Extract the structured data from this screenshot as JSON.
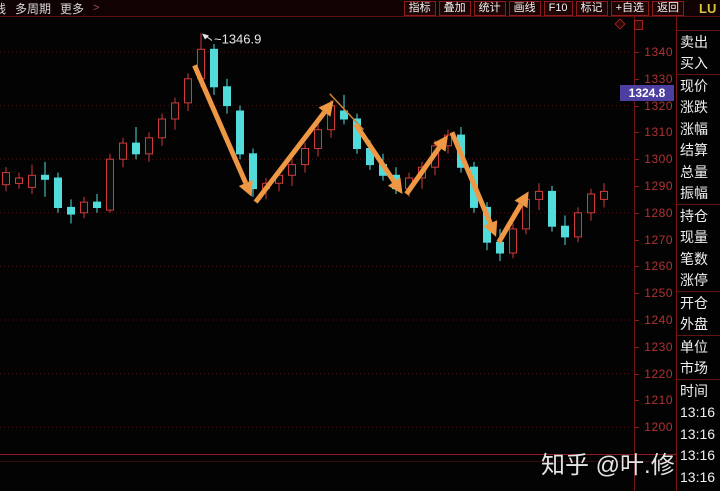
{
  "toolbar": {
    "left_items": [
      {
        "label": "线",
        "name": "clipped-menu-item"
      },
      {
        "label": "多周期",
        "name": "multi-period-menu"
      },
      {
        "label": "更多",
        "name": "more-menu"
      }
    ],
    "chevron": ">",
    "right_items": [
      {
        "label": "指标",
        "name": "indicator-button"
      },
      {
        "label": "叠加",
        "name": "overlay-button"
      },
      {
        "label": "统计",
        "name": "statistics-button"
      },
      {
        "label": "画线",
        "name": "draw-line-button"
      },
      {
        "label": "F10",
        "name": "f10-button"
      },
      {
        "label": "标记",
        "name": "mark-button"
      },
      {
        "label": "+自选",
        "name": "add-watchlist-button"
      },
      {
        "label": "返回",
        "name": "back-button"
      }
    ]
  },
  "symbol": "LU",
  "chart": {
    "watermark": "知乎 @叶.修",
    "annotation_label": "1346.9"
  },
  "axis": {
    "labels": [
      "1340",
      "1330",
      "1320",
      "1310",
      "1300",
      "1290",
      "1280",
      "1270",
      "1260",
      "1250",
      "1240",
      "1230",
      "1220",
      "1210",
      "1200"
    ],
    "current_price": "1324.8",
    "current_price_bg": "#4c3fa0",
    "text_color": "#b23232"
  },
  "quote_panel": {
    "groups": [
      {
        "rows": [
          "卖出",
          "买入"
        ]
      },
      {
        "rows": [
          "现价",
          "涨跌",
          "涨幅",
          "结算",
          "总量",
          "振幅"
        ]
      },
      {
        "rows": [
          "持仓",
          "现量",
          "笔数",
          "涨停"
        ]
      },
      {
        "rows": [
          "开仓",
          "外盘"
        ]
      },
      {
        "rows": [
          "单位",
          "市场"
        ]
      },
      {
        "rows": [
          "时间",
          "13:16",
          "13:16",
          "13:16",
          "13:16",
          "13:16"
        ]
      }
    ]
  },
  "chart_data": {
    "type": "candlestick",
    "ylabel": "price",
    "y_axis_ticks": [
      1340,
      1330,
      1320,
      1310,
      1300,
      1290,
      1280,
      1270,
      1260,
      1250,
      1240,
      1230,
      1220,
      1210,
      1200
    ],
    "grid_prices": [
      1340,
      1320,
      1300,
      1280,
      1260,
      1240,
      1220,
      1200
    ],
    "high_annotation": "1346.9",
    "colors": {
      "up": "#cf3a3a",
      "down": "#52dbdb",
      "arrow": "#ee9744",
      "arrow_thin": "#c97f33",
      "grid": "#521313",
      "annotation": "#e8e8e8"
    },
    "candles": [
      [
        1290.5,
        1297,
        1288,
        1295
      ],
      [
        1291,
        1295,
        1289,
        1293
      ],
      [
        1289.5,
        1298,
        1287,
        1294
      ],
      [
        1294,
        1299,
        1286,
        1292.5
      ],
      [
        1293,
        1295,
        1280,
        1282
      ],
      [
        1282,
        1285,
        1276,
        1279.5
      ],
      [
        1280,
        1286,
        1278,
        1284
      ],
      [
        1284,
        1287,
        1280,
        1282
      ],
      [
        1281,
        1302,
        1280,
        1300
      ],
      [
        1300,
        1308,
        1297,
        1306
      ],
      [
        1306,
        1312,
        1300,
        1302
      ],
      [
        1302,
        1310,
        1299,
        1308
      ],
      [
        1308,
        1317,
        1305,
        1315
      ],
      [
        1315,
        1323,
        1311,
        1321
      ],
      [
        1321,
        1332,
        1318,
        1330
      ],
      [
        1330,
        1346.9,
        1327,
        1341
      ],
      [
        1341,
        1343,
        1324,
        1327
      ],
      [
        1327,
        1330,
        1317,
        1320
      ],
      [
        1318,
        1320,
        1300,
        1302
      ],
      [
        1302,
        1304,
        1286,
        1289
      ],
      [
        1289,
        1293,
        1285,
        1291
      ],
      [
        1291,
        1296,
        1288,
        1294
      ],
      [
        1294,
        1300,
        1290,
        1298
      ],
      [
        1298,
        1306,
        1295,
        1304
      ],
      [
        1304,
        1313,
        1301,
        1311
      ],
      [
        1311,
        1322,
        1308,
        1320
      ],
      [
        1318,
        1324,
        1313,
        1315
      ],
      [
        1315,
        1317,
        1302,
        1304
      ],
      [
        1304,
        1307,
        1296,
        1298
      ],
      [
        1298,
        1302,
        1292,
        1294
      ],
      [
        1294,
        1297,
        1287,
        1289
      ],
      [
        1289,
        1295,
        1286,
        1293
      ],
      [
        1293,
        1299,
        1289,
        1297
      ],
      [
        1297,
        1307,
        1294,
        1305
      ],
      [
        1305,
        1311,
        1302,
        1309
      ],
      [
        1309,
        1312,
        1295,
        1297
      ],
      [
        1297,
        1299,
        1280,
        1282
      ],
      [
        1282,
        1284,
        1266,
        1269
      ],
      [
        1269,
        1274,
        1262,
        1265
      ],
      [
        1265,
        1276,
        1263,
        1274
      ],
      [
        1274,
        1287,
        1272,
        1285
      ],
      [
        1285,
        1291,
        1281,
        1288
      ],
      [
        1288,
        1290,
        1273,
        1275
      ],
      [
        1275,
        1279,
        1268,
        1271
      ],
      [
        1271,
        1282,
        1269,
        1280
      ],
      [
        1280,
        1289,
        1277,
        1287
      ],
      [
        1285,
        1291,
        1282,
        1288
      ]
    ],
    "arrows": [
      {
        "from": [
          14.5,
          1335
        ],
        "to": [
          18.9,
          1286
        ]
      },
      {
        "from": [
          19.2,
          1284
        ],
        "to": [
          25.2,
          1322
        ]
      },
      {
        "from": [
          26.9,
          1313
        ],
        "to": [
          30.5,
          1287
        ]
      },
      {
        "from": [
          30.8,
          1287
        ],
        "to": [
          34.0,
          1309
        ]
      },
      {
        "from": [
          34.3,
          1310
        ],
        "to": [
          37.7,
          1271
        ]
      },
      {
        "from": [
          37.9,
          1269
        ],
        "to": [
          40.2,
          1288
        ]
      }
    ],
    "trendline": {
      "from": [
        24.9,
        1324.4
      ],
      "to": [
        27.5,
        1311
      ]
    }
  }
}
